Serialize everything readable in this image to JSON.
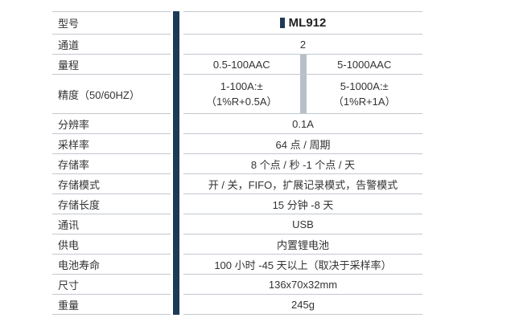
{
  "colors": {
    "accent": "#1e3a56",
    "row_line": "#c2c8cf",
    "column_divider": "#b9bec8",
    "text": "#333333"
  },
  "table": {
    "header": {
      "label": "型号",
      "value": "ML912",
      "icon": "model-badge-icon"
    },
    "rows": [
      {
        "label": "通道",
        "value": "2"
      },
      {
        "label": "量程",
        "values": [
          [
            "0.5-100AAC"
          ],
          [
            "5-1000AAC"
          ]
        ]
      },
      {
        "label": "精度（50/60HZ）",
        "values": [
          [
            "1-100A:±",
            "（1%R+0.5A）"
          ],
          [
            "5-1000A:±",
            "（1%R+1A）"
          ]
        ]
      },
      {
        "label": "分辨率",
        "value": "0.1A"
      },
      {
        "label": "采样率",
        "value": "64 点 / 周期"
      },
      {
        "label": "存储率",
        "value": "8 个点 / 秒 -1 个点 / 天"
      },
      {
        "label": "存储模式",
        "value": "开 / 关，FIFO，扩展记录模式，告警模式"
      },
      {
        "label": "存储长度",
        "value": "15 分钟 -8 天"
      },
      {
        "label": "通讯",
        "value": "USB"
      },
      {
        "label": "供电",
        "value": "内置锂电池"
      },
      {
        "label": "电池寿命",
        "value": "100 小时 -45 天以上（取决于采样率）"
      },
      {
        "label": "尺寸",
        "value": "136x70x32mm"
      },
      {
        "label": "重量",
        "value": "245g"
      }
    ]
  }
}
